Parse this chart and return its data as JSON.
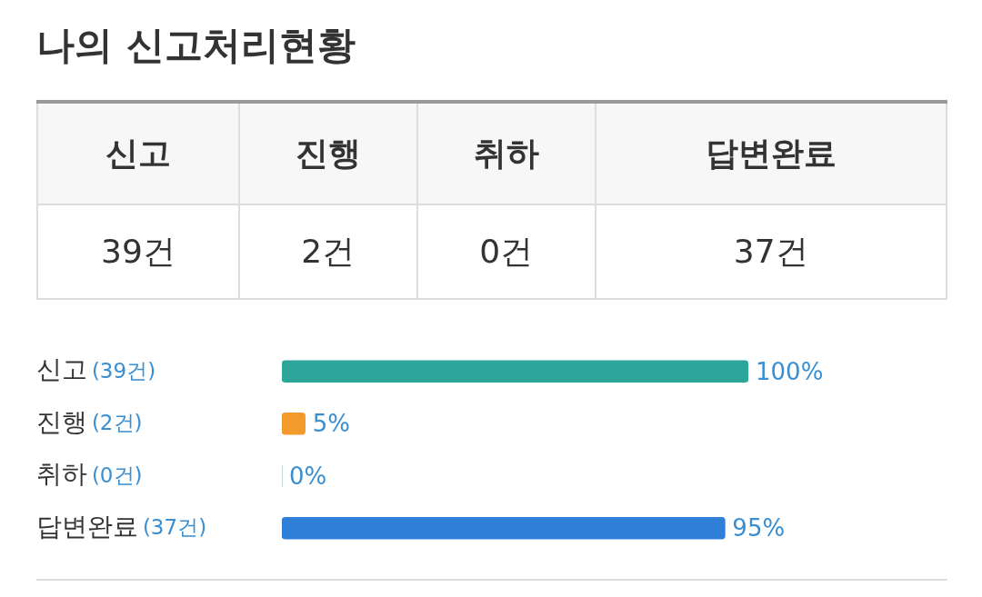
{
  "chart_data": [
    {
      "type": "other",
      "title": "나의 신고처리현황",
      "categories": [
        "신고",
        "진행",
        "취하",
        "답변완료"
      ],
      "value_labels": [
        "39건",
        "2건",
        "0건",
        "37건"
      ]
    },
    {
      "type": "bar",
      "orientation": "horizontal",
      "categories": [
        "신고 (39건)",
        "진행 (2건)",
        "취하 (0건)",
        "답변완료 (37건)"
      ],
      "values": [
        100,
        5,
        0,
        95
      ],
      "colors": [
        "#2ca59b",
        "#f39a2d",
        "#2ca59b",
        "#2f7fd9"
      ],
      "value_labels": [
        "100%",
        "5%",
        "0%",
        "95%"
      ]
    }
  ]
}
